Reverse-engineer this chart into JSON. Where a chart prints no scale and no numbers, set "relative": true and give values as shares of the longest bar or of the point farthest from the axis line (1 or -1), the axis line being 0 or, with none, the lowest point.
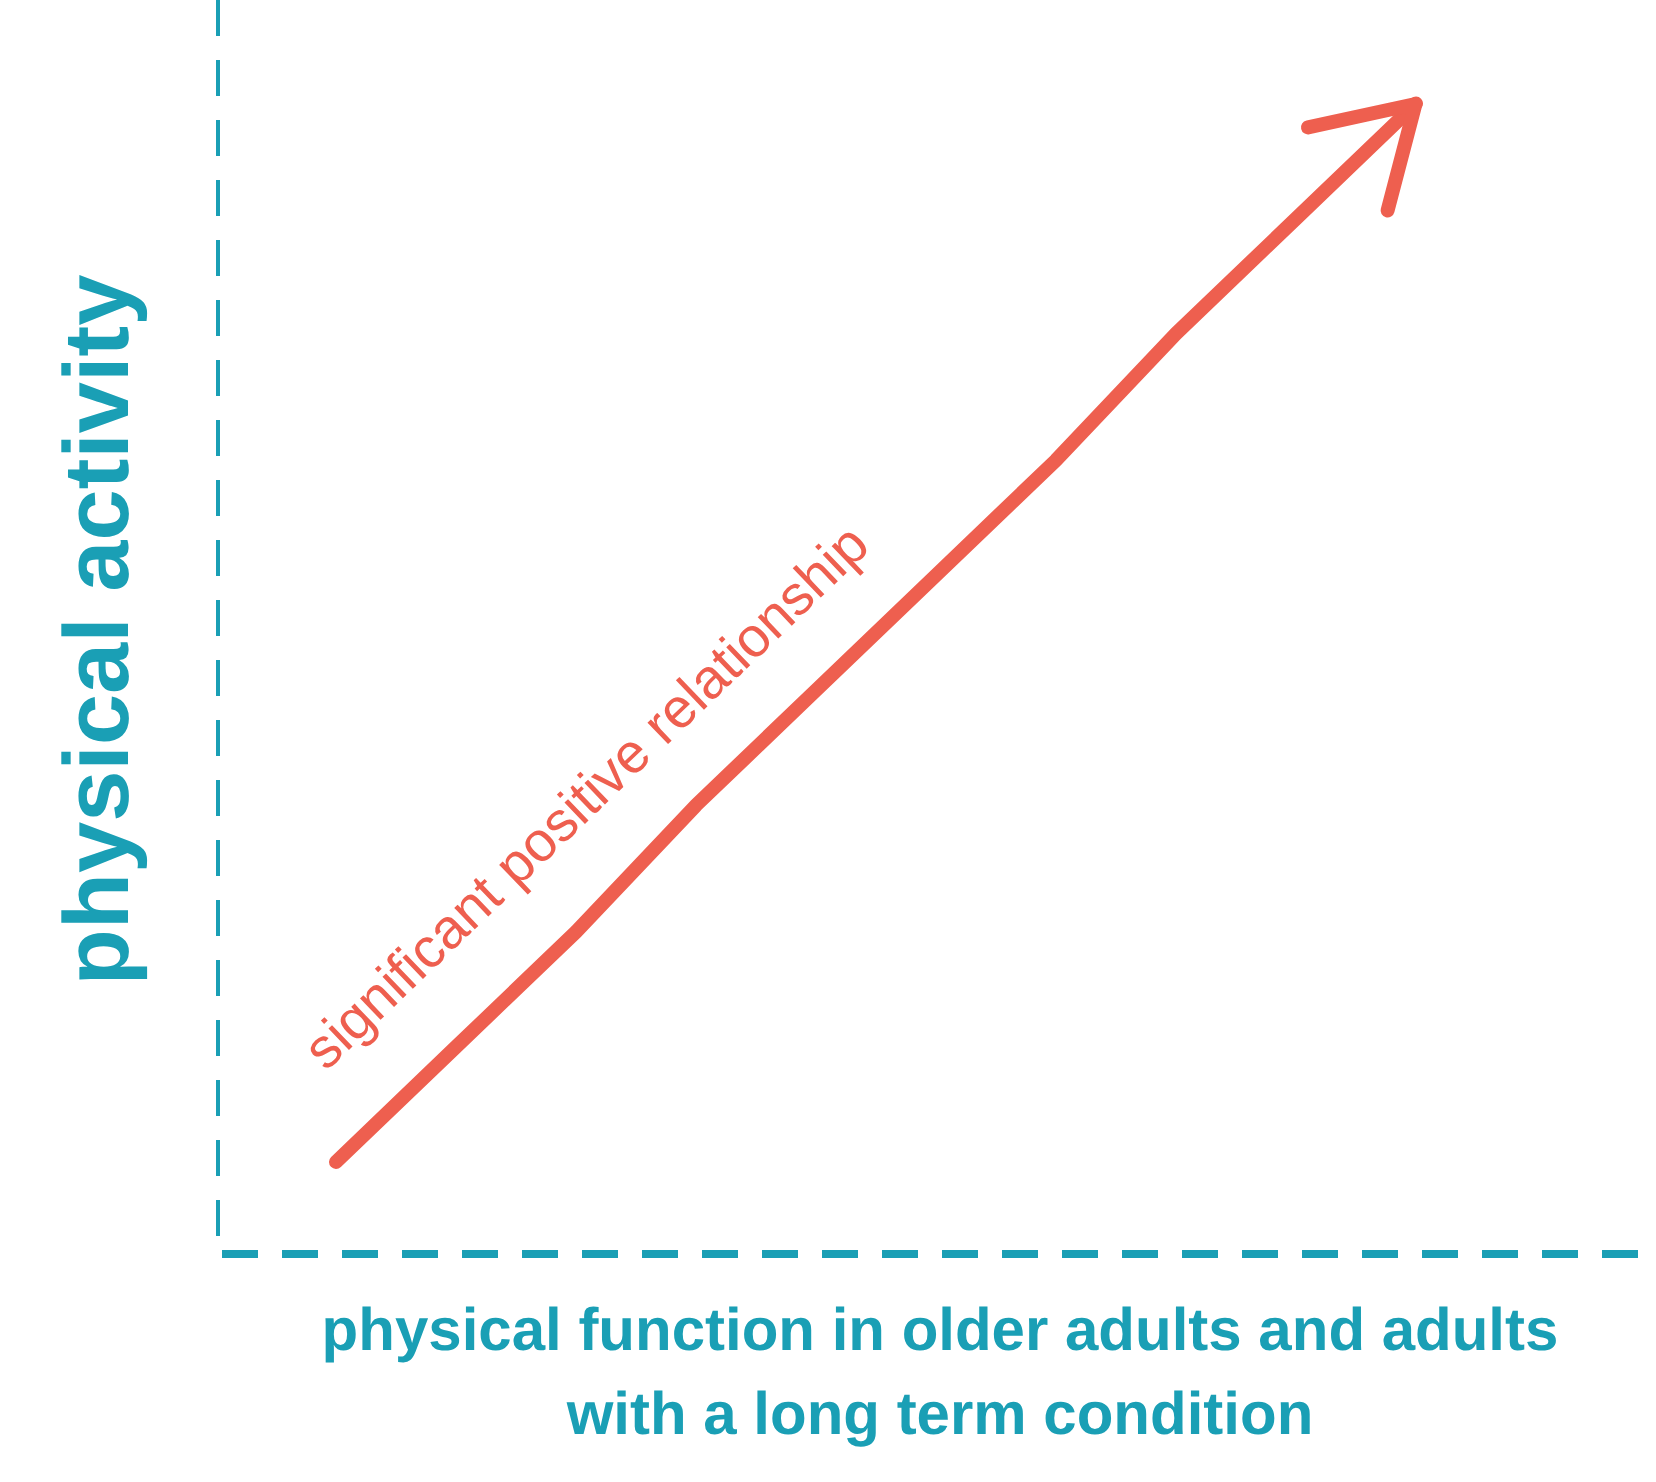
{
  "chart_data": {
    "type": "line",
    "relative": true,
    "xlabel": "physical function in older adults and adults with a long term condition",
    "ylabel": "physical activity",
    "categories": [
      null,
      null,
      null,
      null,
      null,
      null,
      null,
      null,
      null,
      null,
      null,
      null,
      null
    ],
    "series": [
      {
        "color": "#ee5f4f",
        "values": [
          null,
          0.08,
          0.18,
          0.28,
          0.39,
          0.49,
          0.59,
          0.69,
          0.8,
          0.9,
          1,
          null,
          null
        ]
      }
    ],
    "annotations": [
      "significant positive relationship"
    ],
    "grid": false,
    "legend": false,
    "marker": "none",
    "line_style": "solid"
  }
}
